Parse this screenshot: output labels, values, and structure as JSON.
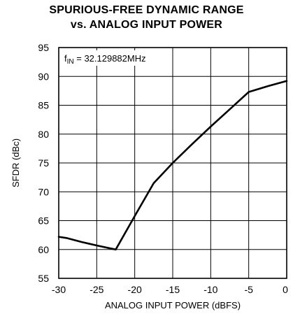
{
  "chart_data": {
    "type": "line",
    "title_line1": "SPURIOUS-FREE DYNAMIC RANGE",
    "title_line2": "vs. ANALOG INPUT POWER",
    "xlabel": "ANALOG INPUT POWER (dBFS)",
    "ylabel": "SFDR (dBc)",
    "annotation": {
      "symbol": "f",
      "subscript": "IN",
      "value": " = 32.129882MHz"
    },
    "xlim": [
      -30,
      0
    ],
    "ylim": [
      55,
      95
    ],
    "xticks": [
      "-30",
      "-25",
      "-20",
      "-15",
      "-10",
      "-5",
      "0"
    ],
    "yticks": [
      "95",
      "90",
      "85",
      "80",
      "75",
      "70",
      "65",
      "60",
      "55"
    ],
    "grid": true,
    "series": [
      {
        "x": [
          -30,
          -29,
          -27,
          -25,
          -22.5,
          -20,
          -17.5,
          -15,
          -12.5,
          -10,
          -7.5,
          -5,
          -2.5,
          0
        ],
        "y": [
          62.2,
          62.0,
          61.3,
          60.7,
          60.0,
          65.8,
          71.5,
          75.0,
          78.2,
          81.3,
          84.3,
          87.3,
          88.3,
          89.2
        ]
      }
    ]
  }
}
